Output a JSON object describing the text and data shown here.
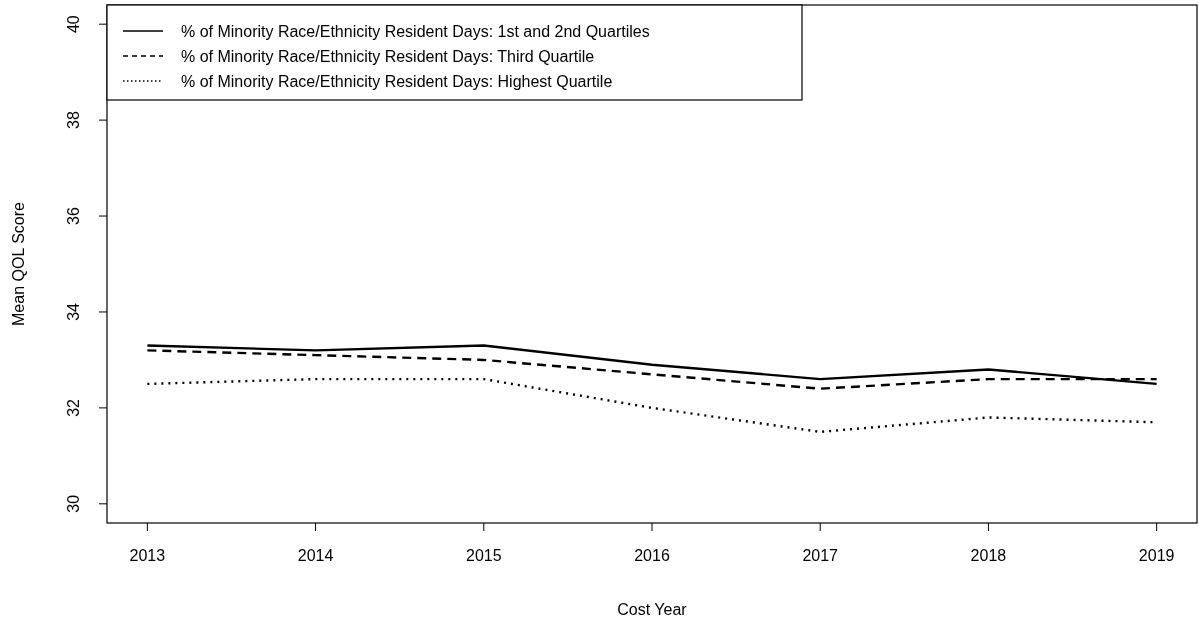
{
  "chart_data": {
    "type": "line",
    "xlabel": "Cost Year",
    "ylabel": "Mean QOL Score",
    "x": [
      2013,
      2014,
      2015,
      2016,
      2017,
      2018,
      2019
    ],
    "xlim": [
      2012.76,
      2019.24
    ],
    "xticks": [
      2013,
      2014,
      2015,
      2016,
      2017,
      2018,
      2019
    ],
    "ylim": [
      29.6,
      40.4
    ],
    "yticks": [
      30,
      32,
      34,
      36,
      38,
      40
    ],
    "legend": "top left",
    "grid": false,
    "series": [
      {
        "name": "% of Minority Race/Ethnicity Resident Days: 1st and 2nd Quartiles",
        "color": "#000000",
        "line_style": "solid",
        "values": [
          33.3,
          33.2,
          33.3,
          32.9,
          32.6,
          32.8,
          32.5
        ]
      },
      {
        "name": "% of Minority Race/Ethnicity Resident Days: Third Quartile",
        "color": "#000000",
        "line_style": "dashed",
        "values": [
          33.2,
          33.1,
          33.0,
          32.7,
          32.4,
          32.6,
          32.6
        ]
      },
      {
        "name": "% of Minority Race/Ethnicity Resident Days: Highest Quartile",
        "color": "#000000",
        "line_style": "dotted",
        "values": [
          32.5,
          32.6,
          32.6,
          32.0,
          31.5,
          31.8,
          31.7
        ]
      }
    ]
  }
}
